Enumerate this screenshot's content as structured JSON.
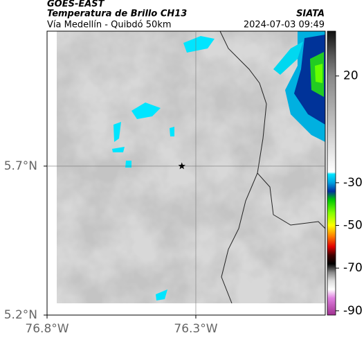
{
  "header": {
    "source": "GOES-EAST",
    "title": "Temperatura de Brillo CH13",
    "subtitle": "Vía Medellín - Quibdó 50km",
    "brand": "SIATA",
    "datetime": "2024-07-03 09:49"
  },
  "chart_data": {
    "type": "map",
    "xlim": [
      -76.8,
      -75.865
    ],
    "ylim": [
      5.2,
      6.153
    ],
    "xticks": [
      {
        "value": -76.8,
        "label": "76.8°W"
      },
      {
        "value": -76.3,
        "label": "76.3°W"
      }
    ],
    "yticks": [
      {
        "value": 5.2,
        "label": "5.2°N"
      },
      {
        "value": 5.7,
        "label": "5.7°N"
      }
    ],
    "grid": true,
    "marker": {
      "lon": -76.347,
      "lat": 5.7
    },
    "colorbar": {
      "lim": [
        -92,
        41
      ],
      "ticks": [
        20,
        -30,
        -50,
        -70,
        -90
      ],
      "colormap": [
        [
          41,
          "#111111"
        ],
        [
          30,
          "#555555"
        ],
        [
          20,
          "#888888"
        ],
        [
          0,
          "#bbbbbb"
        ],
        [
          -25,
          "#ffffff"
        ],
        [
          -26,
          "#00e5ff"
        ],
        [
          -30,
          "#00a0e0"
        ],
        [
          -34,
          "#0030a0"
        ],
        [
          -38,
          "#00c800"
        ],
        [
          -44,
          "#80ff00"
        ],
        [
          -50,
          "#ffff00"
        ],
        [
          -55,
          "#ff8000"
        ],
        [
          -60,
          "#e00000"
        ],
        [
          -64,
          "#400000"
        ],
        [
          -68,
          "#000000"
        ],
        [
          -72,
          "#888888"
        ],
        [
          -76,
          "#dddddd"
        ],
        [
          -80,
          "#ffffff"
        ],
        [
          -84,
          "#e080e0"
        ],
        [
          -92,
          "#a03090"
        ]
      ]
    }
  }
}
